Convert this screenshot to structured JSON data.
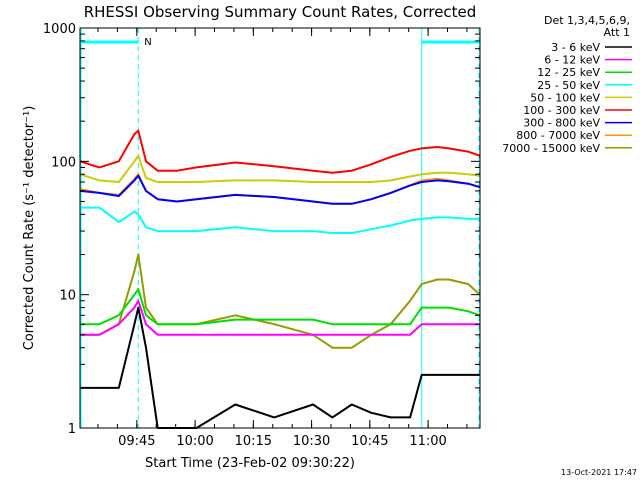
{
  "chart_data": {
    "type": "line",
    "title": "RHESSI Observing Summary Count Rates, Corrected",
    "xlabel": "Start Time (23-Feb-02 09:30:22)",
    "ylabel": "Corrected Count Rate (s⁻¹ detector⁻¹)",
    "y_scale": "log",
    "ylim": [
      1,
      1000
    ],
    "xlim_minutes_after_start": [
      0,
      103
    ],
    "x_ticks": [
      "09:45",
      "10:00",
      "10:15",
      "10:30",
      "10:45",
      "11:00"
    ],
    "y_ticks": [
      "1",
      "10",
      "100",
      "1000"
    ],
    "legend": {
      "header": [
        "Det 1,3,4,5,6,9,",
        "Att 1"
      ],
      "position": "top-right outside"
    },
    "annotation": "N",
    "night_bars": [
      {
        "start_min": 0,
        "end_min": 15
      },
      {
        "start_min": 88,
        "end_min": 103
      }
    ],
    "x": [
      0,
      5,
      10,
      14,
      15,
      17,
      20,
      25,
      30,
      40,
      50,
      60,
      65,
      70,
      75,
      80,
      85,
      88,
      92,
      95,
      100,
      103
    ],
    "series": [
      {
        "name": "3 - 6 keV",
        "color": "#000000",
        "values": [
          2,
          2,
          2,
          6,
          8,
          4,
          1,
          1,
          1,
          1.5,
          1.2,
          1.5,
          1.2,
          1.5,
          1.3,
          1.2,
          1.2,
          2.5,
          2.5,
          2.5,
          2.5,
          2.5
        ]
      },
      {
        "name": "6 - 12 keV",
        "color": "#ff00ff",
        "values": [
          5,
          5,
          6,
          8,
          9,
          6,
          5,
          5,
          5,
          5,
          5,
          5,
          5,
          5,
          5,
          5,
          5,
          6,
          6,
          6,
          6,
          6
        ]
      },
      {
        "name": "12 - 25 keV",
        "color": "#00dd00",
        "values": [
          6,
          6,
          7,
          10,
          11,
          7,
          6,
          6,
          6,
          6.5,
          6.5,
          6.5,
          6,
          6,
          6,
          6,
          6,
          8,
          8,
          8,
          7.5,
          7
        ]
      },
      {
        "name": "25 - 50 keV",
        "color": "#00ffff",
        "values": [
          45,
          45,
          35,
          42,
          40,
          32,
          30,
          30,
          30,
          32,
          30,
          30,
          29,
          29,
          31,
          33,
          36,
          37,
          38,
          38,
          37,
          37
        ]
      },
      {
        "name": "50 - 100 keV",
        "color": "#cccc00",
        "values": [
          80,
          72,
          70,
          100,
          110,
          75,
          70,
          70,
          70,
          72,
          72,
          70,
          70,
          70,
          70,
          72,
          77,
          80,
          82,
          82,
          80,
          78
        ]
      },
      {
        "name": "100 - 300 keV",
        "color": "#ff0000",
        "values": [
          100,
          90,
          100,
          160,
          170,
          100,
          85,
          85,
          90,
          98,
          92,
          85,
          82,
          85,
          95,
          108,
          120,
          125,
          128,
          125,
          118,
          110
        ]
      },
      {
        "name": "300 - 800 keV",
        "color": "#0000ff",
        "values": [
          60,
          58,
          55,
          72,
          78,
          60,
          52,
          50,
          52,
          56,
          54,
          50,
          48,
          48,
          52,
          58,
          66,
          70,
          72,
          71,
          68,
          64
        ]
      },
      {
        "name": "800 - 7000 keV",
        "color": "#ff9900",
        "values": [
          62,
          58,
          56,
          74,
          80,
          60,
          52,
          50,
          52,
          56,
          54,
          50,
          48,
          48,
          52,
          58,
          66,
          72,
          74,
          72,
          68,
          64
        ]
      },
      {
        "name": "7000 - 15000 keV",
        "color": "#999900",
        "values": [
          5,
          5,
          6,
          15,
          20,
          8,
          6,
          6,
          6,
          7,
          6,
          5,
          4,
          4,
          5,
          6,
          9,
          12,
          13,
          13,
          12,
          10
        ]
      }
    ]
  },
  "footer": {
    "date": "13-Oct-2021 17:47"
  }
}
